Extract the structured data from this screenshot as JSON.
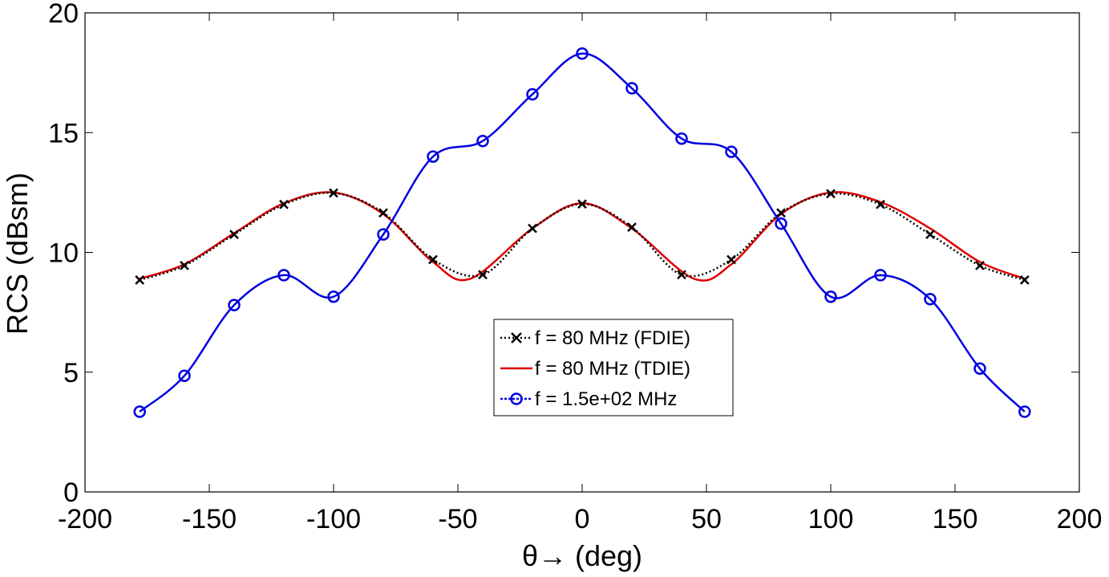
{
  "chart_data": {
    "type": "line",
    "xlabel": "θ→ (deg)",
    "ylabel": "RCS (dBsm)",
    "xlim": [
      -200,
      200
    ],
    "ylim": [
      0,
      20
    ],
    "xticks": [
      -200,
      -150,
      -100,
      -50,
      0,
      50,
      100,
      150,
      200
    ],
    "yticks": [
      0,
      5,
      10,
      15,
      20
    ],
    "legend_position": "center-bottom",
    "series": [
      {
        "name": "f = 80 MHz (FDIE)",
        "color": "#000000",
        "style": "dotted",
        "marker": "x",
        "x": [
          -178,
          -160,
          -140,
          -120,
          -100,
          -80,
          -60,
          -40,
          -20,
          0,
          20,
          40,
          60,
          80,
          100,
          120,
          140,
          160,
          178
        ],
        "y": [
          8.85,
          9.45,
          10.75,
          12.0,
          12.48,
          11.65,
          9.7,
          9.07,
          11.0,
          12.02,
          11.05,
          9.07,
          9.7,
          11.65,
          12.45,
          12.0,
          10.75,
          9.45,
          8.85
        ]
      },
      {
        "name": "f = 80 MHz (TDIE)",
        "color": "#e00000",
        "style": "solid",
        "marker": "none",
        "x": [
          -178,
          -160,
          -140,
          -120,
          -100,
          -80,
          -60,
          -45,
          -20,
          0,
          20,
          45,
          60,
          80,
          100,
          120,
          140,
          160,
          178
        ],
        "y": [
          8.9,
          9.5,
          10.8,
          12.05,
          12.5,
          11.6,
          9.6,
          8.9,
          11.0,
          12.05,
          11.0,
          8.9,
          9.5,
          11.6,
          12.5,
          12.1,
          11.0,
          9.6,
          8.9
        ]
      },
      {
        "name": "f = 1.5e+02 MHz",
        "color": "#0000e0",
        "style": "solid",
        "marker": "o",
        "x": [
          -178,
          -160,
          -140,
          -120,
          -100,
          -80,
          -60,
          -40,
          -20,
          0,
          20,
          40,
          60,
          80,
          100,
          120,
          140,
          160,
          178
        ],
        "y": [
          3.35,
          4.85,
          7.8,
          9.05,
          8.15,
          10.75,
          14.0,
          14.65,
          16.6,
          18.3,
          16.85,
          14.75,
          14.2,
          11.2,
          8.15,
          9.05,
          8.05,
          5.15,
          3.35
        ]
      }
    ]
  }
}
